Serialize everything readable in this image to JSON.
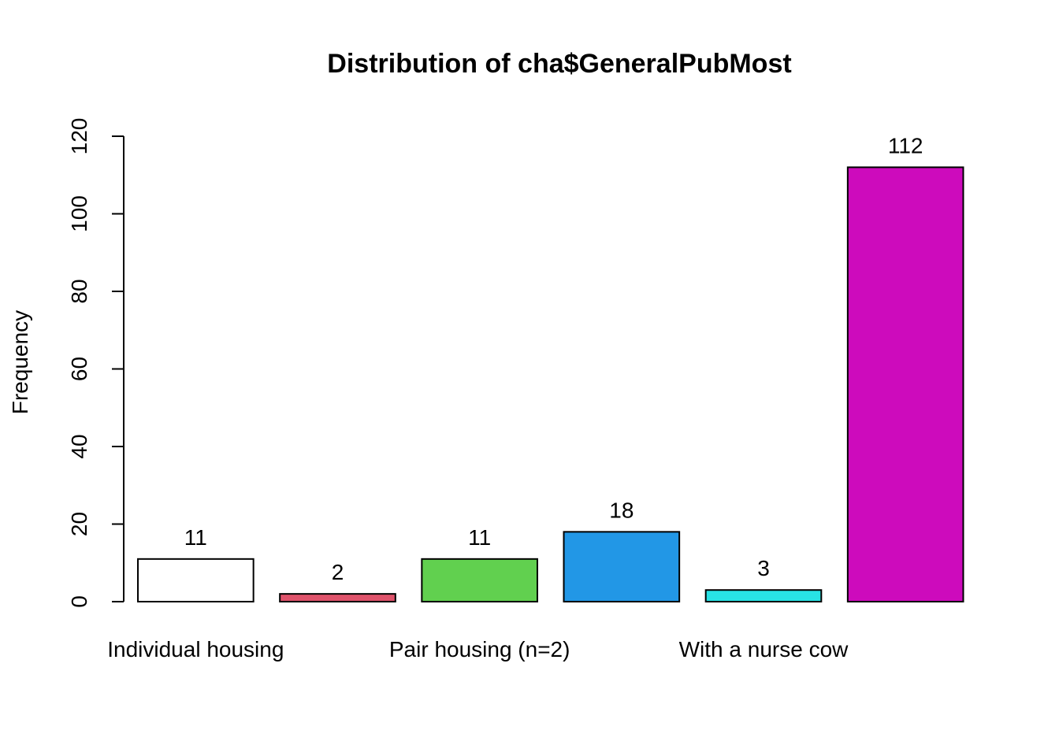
{
  "chart_data": {
    "type": "bar",
    "title": "Distribution of cha$GeneralPubMost",
    "xlabel": "",
    "ylabel": "Frequency",
    "ylim": [
      0,
      120
    ],
    "yticks": [
      0,
      20,
      40,
      60,
      80,
      100,
      120
    ],
    "grid": false,
    "categories": [
      "Individual housing",
      "",
      "Pair housing (n=2)",
      "",
      "With a nurse cow",
      ""
    ],
    "values": [
      11,
      2,
      11,
      18,
      3,
      112
    ],
    "colors": [
      "#FFFFFF",
      "#DF536B",
      "#61D04F",
      "#2297E6",
      "#28E2E5",
      "#CD0BBC"
    ]
  }
}
